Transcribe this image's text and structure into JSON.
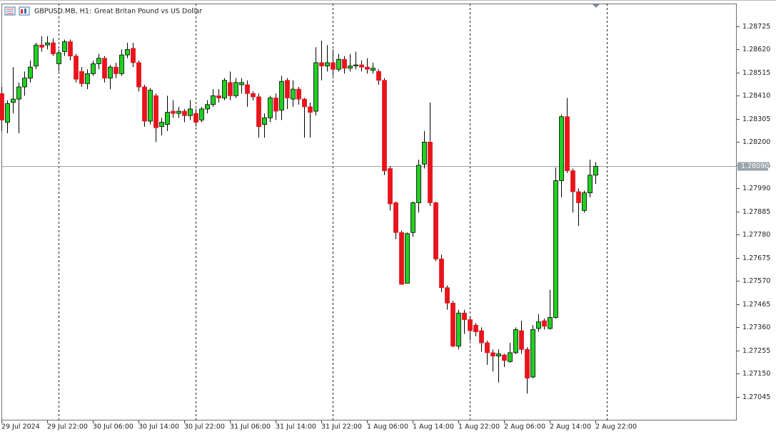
{
  "chart_data": {
    "type": "candlestick",
    "title": "GBPUSD.MB, H1:",
    "subtitle": "Great Britan Pound vs US Dollar",
    "categories": [
      "29 Jul 2024",
      null,
      null,
      null,
      null,
      null,
      null,
      null,
      "29 Jul 22:00",
      null,
      null,
      null,
      null,
      null,
      null,
      null,
      "30 Jul 06:00",
      null,
      null,
      null,
      null,
      null,
      null,
      null,
      "30 Jul 14:00",
      null,
      null,
      null,
      null,
      null,
      null,
      null,
      "30 Jul 22:00",
      null,
      null,
      null,
      null,
      null,
      null,
      null,
      "31 Jul 06:00",
      null,
      null,
      null,
      null,
      null,
      null,
      null,
      "31 Jul 14:00",
      null,
      null,
      null,
      null,
      null,
      null,
      null,
      "31 Jul 22:00",
      null,
      null,
      null,
      null,
      null,
      null,
      null,
      "1 Aug 06:00",
      null,
      null,
      null,
      null,
      null,
      null,
      null,
      "1 Aug 14:00",
      null,
      null,
      null,
      null,
      null,
      null,
      null,
      "1 Aug 22:00",
      null,
      null,
      null,
      null,
      null,
      null,
      null,
      "2 Aug 06:00",
      null,
      null,
      null,
      null,
      null,
      null,
      null,
      "2 Aug 14:00",
      null,
      null,
      null,
      null,
      null,
      null,
      null,
      "2 Aug 22:00"
    ],
    "open": [
      1.2842,
      1.2829,
      1.2838,
      1.28395,
      1.2845,
      1.2849,
      1.28545,
      1.2864,
      1.2864,
      1.2865,
      1.28555,
      1.2861,
      1.28655,
      1.2859,
      1.2852,
      1.28465,
      1.2851,
      1.28555,
      1.2858,
      1.2849,
      1.2854,
      1.2851,
      1.28595,
      1.28625,
      1.2856,
      1.2845,
      1.28295,
      1.2841,
      1.2827,
      1.2828,
      1.2834,
      1.2833,
      1.2834,
      1.2832,
      1.2833,
      1.283,
      1.2835,
      1.2837,
      1.2841,
      1.284,
      1.2847,
      1.2841,
      1.2846,
      1.2846,
      1.2842,
      1.28405,
      1.2828,
      1.2831,
      1.284,
      1.28345,
      1.2848,
      1.28395,
      1.2844,
      1.28395,
      1.2836,
      1.2834,
      1.2856,
      1.28545,
      1.2856,
      1.2853,
      1.28575,
      1.28535,
      1.28545,
      1.2855,
      1.2854,
      1.28525,
      1.2852,
      1.2848,
      1.2808,
      1.27925,
      1.2779,
      1.2756,
      1.2779,
      1.27925,
      1.281,
      1.282,
      1.27925,
      1.2767,
      1.2754,
      1.2747,
      1.27275,
      1.27425,
      1.27395,
      1.2737,
      1.27345,
      1.2729,
      1.27245,
      1.2723,
      1.27235,
      1.27205,
      1.27245,
      1.27345,
      1.2726,
      1.27135,
      1.27355,
      1.2739,
      1.27355,
      1.27405,
      1.28025,
      1.28315,
      1.2807,
      1.27975,
      1.2789,
      1.2797,
      1.2805
    ],
    "high": [
      1.2845,
      1.2839,
      1.2854,
      1.2847,
      1.2852,
      1.2857,
      1.2865,
      1.2868,
      1.2868,
      1.2867,
      1.2862,
      1.28665,
      1.28665,
      1.286,
      1.2854,
      1.2853,
      1.2857,
      1.286,
      1.2859,
      1.2855,
      1.2856,
      1.2862,
      1.2865,
      1.2865,
      1.2857,
      1.2846,
      1.28445,
      1.2842,
      1.2831,
      1.2841,
      1.2839,
      1.2836,
      1.2835,
      1.2839,
      1.2835,
      1.2836,
      1.2839,
      1.2844,
      1.2844,
      1.2849,
      1.2852,
      1.2849,
      1.2849,
      1.2848,
      1.2843,
      1.2842,
      1.2833,
      1.2841,
      1.2842,
      1.285,
      1.2849,
      1.2848,
      1.2845,
      1.284,
      1.2838,
      1.2863,
      1.2866,
      1.2864,
      1.2862,
      1.286,
      1.2859,
      1.286,
      1.2861,
      1.2857,
      1.2858,
      1.2856,
      1.2853,
      1.2849,
      1.2809,
      1.2793,
      1.278,
      1.2779,
      1.2793,
      1.2812,
      1.2825,
      1.2838,
      1.2793,
      1.2769,
      1.2755,
      1.2748,
      1.2744,
      1.2744,
      1.2741,
      1.2738,
      1.2736,
      1.273,
      1.2726,
      1.2726,
      1.2724,
      1.2729,
      1.2736,
      1.2739,
      1.2727,
      1.2737,
      1.2742,
      1.274,
      1.2753,
      1.28085,
      1.28325,
      1.284,
      1.2808,
      1.2799,
      1.2798,
      1.2812,
      1.2811
    ],
    "low": [
      1.2825,
      1.2824,
      1.2833,
      1.2824,
      1.2841,
      1.2847,
      1.2853,
      1.2861,
      1.2862,
      1.2859,
      1.2852,
      1.2859,
      1.2857,
      1.2847,
      1.2845,
      1.2844,
      1.285,
      1.2853,
      1.2847,
      1.2844,
      1.2849,
      1.285,
      1.2858,
      1.2854,
      1.2843,
      1.2827,
      1.2828,
      1.282,
      1.2823,
      1.2825,
      1.2831,
      1.2831,
      1.2829,
      1.283,
      1.2827,
      1.2829,
      1.2833,
      1.2836,
      1.2838,
      1.2839,
      1.2839,
      1.284,
      1.2842,
      1.2836,
      1.2839,
      1.2822,
      1.2822,
      1.2829,
      1.283,
      1.283,
      1.2835,
      1.2836,
      1.2837,
      1.2822,
      1.2822,
      1.2832,
      1.2848,
      1.2852,
      1.285,
      1.2852,
      1.2851,
      1.2852,
      1.2853,
      1.2852,
      1.2851,
      1.2851,
      1.2846,
      1.2805,
      1.2789,
      1.2776,
      1.27555,
      1.2756,
      1.2777,
      1.2788,
      1.2808,
      1.2791,
      1.2766,
      1.2752,
      1.2744,
      1.2727,
      1.2726,
      1.2733,
      1.273,
      1.2732,
      1.2725,
      1.2719,
      1.2716,
      1.2711,
      1.2718,
      1.272,
      1.2724,
      1.2724,
      1.2706,
      1.2713,
      1.2734,
      1.2735,
      1.2735,
      1.274,
      1.2795,
      1.2806,
      1.2788,
      1.2782,
      1.2788,
      1.2795,
      1.2801
    ],
    "close": [
      1.283,
      1.28375,
      1.28395,
      1.2845,
      1.2849,
      1.2854,
      1.2864,
      1.2863,
      1.2865,
      1.286,
      1.28605,
      1.28655,
      1.2859,
      1.28485,
      1.28465,
      1.2851,
      1.28555,
      1.2858,
      1.2849,
      1.2854,
      1.2851,
      1.28595,
      1.2862,
      1.2856,
      1.2845,
      1.28295,
      1.28435,
      1.28265,
      1.2829,
      1.28335,
      1.2833,
      1.2834,
      1.2832,
      1.2835,
      1.2829,
      1.2835,
      1.2837,
      1.2841,
      1.284,
      1.2848,
      1.2841,
      1.2847,
      1.2847,
      1.2842,
      1.28405,
      1.2827,
      1.2831,
      1.284,
      1.2834,
      1.28475,
      1.284,
      1.2844,
      1.28395,
      1.2836,
      1.28335,
      1.2856,
      1.28545,
      1.2856,
      1.2853,
      1.28575,
      1.28535,
      1.28545,
      1.2855,
      1.2854,
      1.2853,
      1.28535,
      1.2848,
      1.2807,
      1.2792,
      1.2779,
      1.27555,
      1.27785,
      1.27925,
      1.28095,
      1.282,
      1.27925,
      1.2767,
      1.2754,
      1.2747,
      1.27275,
      1.27425,
      1.27395,
      1.27345,
      1.2734,
      1.2729,
      1.27245,
      1.2723,
      1.2724,
      1.2721,
      1.27245,
      1.2735,
      1.2726,
      1.2713,
      1.2735,
      1.27385,
      1.27365,
      1.27405,
      1.28025,
      1.28315,
      1.2807,
      1.27975,
      1.27925,
      1.2797,
      1.2805,
      1.2809
    ],
    "up_color": "#20d020",
    "down_color": "#e8141c",
    "wick_color": "#000000",
    "ylim": [
      1.26938,
      1.28828
    ],
    "yticks": [
      1.28725,
      {
        "value": 1.2862,
        "label": "1.28620"
      },
      1.28515,
      {
        "value": 1.2841,
        "label": "1.28410"
      },
      1.28305,
      {
        "value": 1.282,
        "label": "1.28200"
      },
      1.28095,
      {
        "value": 1.2799,
        "label": "1.27990"
      },
      1.27885,
      {
        "value": 1.2778,
        "label": "1.27780"
      },
      1.27675,
      {
        "value": 1.2757,
        "label": "1.27570"
      },
      1.27465,
      {
        "value": 1.2736,
        "label": "1.27360"
      },
      1.27255,
      {
        "value": 1.2715,
        "label": "1.27150"
      },
      1.27045
    ],
    "current_price": {
      "value": 1.2809,
      "label": "1.28090"
    }
  }
}
